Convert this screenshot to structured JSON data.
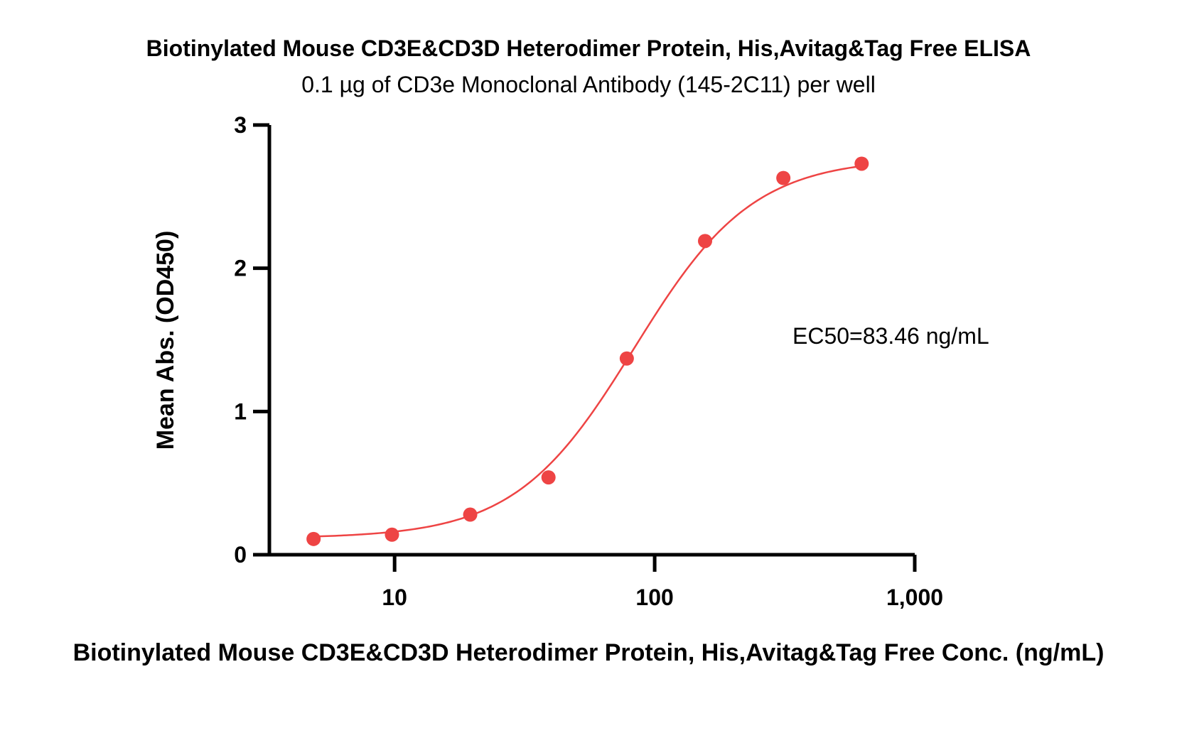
{
  "chart_data": {
    "type": "scatter",
    "title": "Biotinylated Mouse CD3E&CD3D Heterodimer Protein, His,Avitag&Tag Free ELISA",
    "subtitle": "0.1 µg of CD3e Monoclonal Antibody (145-2C11) per well",
    "xlabel": "Biotinylated Mouse CD3E&CD3D Heterodimer Protein, His,Avitag&Tag Free Conc. (ng/mL)",
    "ylabel": "Mean Abs. (OD450)",
    "x_scale": "log",
    "xlim": [
      3.3,
      1000
    ],
    "ylim": [
      0,
      3
    ],
    "x_ticks": [
      10,
      100,
      1000
    ],
    "x_tick_labels": [
      "10",
      "100",
      "1,000"
    ],
    "y_ticks": [
      0,
      1,
      2,
      3
    ],
    "y_tick_labels": [
      "0",
      "1",
      "2",
      "3"
    ],
    "annotation": "EC50=83.46 ng/mL",
    "grid": false,
    "series": [
      {
        "color": "#ee4444",
        "x": [
          4.88,
          9.77,
          19.53,
          39.06,
          78.13,
          156.25,
          312.5,
          625
        ],
        "y": [
          0.11,
          0.14,
          0.28,
          0.54,
          1.37,
          2.19,
          2.63,
          2.73
        ]
      }
    ],
    "fit_curve": {
      "model": "4PL",
      "bottom": 0.115,
      "top": 2.77,
      "ec50": 83.46,
      "hill": 1.9,
      "color": "#ee4444"
    }
  }
}
